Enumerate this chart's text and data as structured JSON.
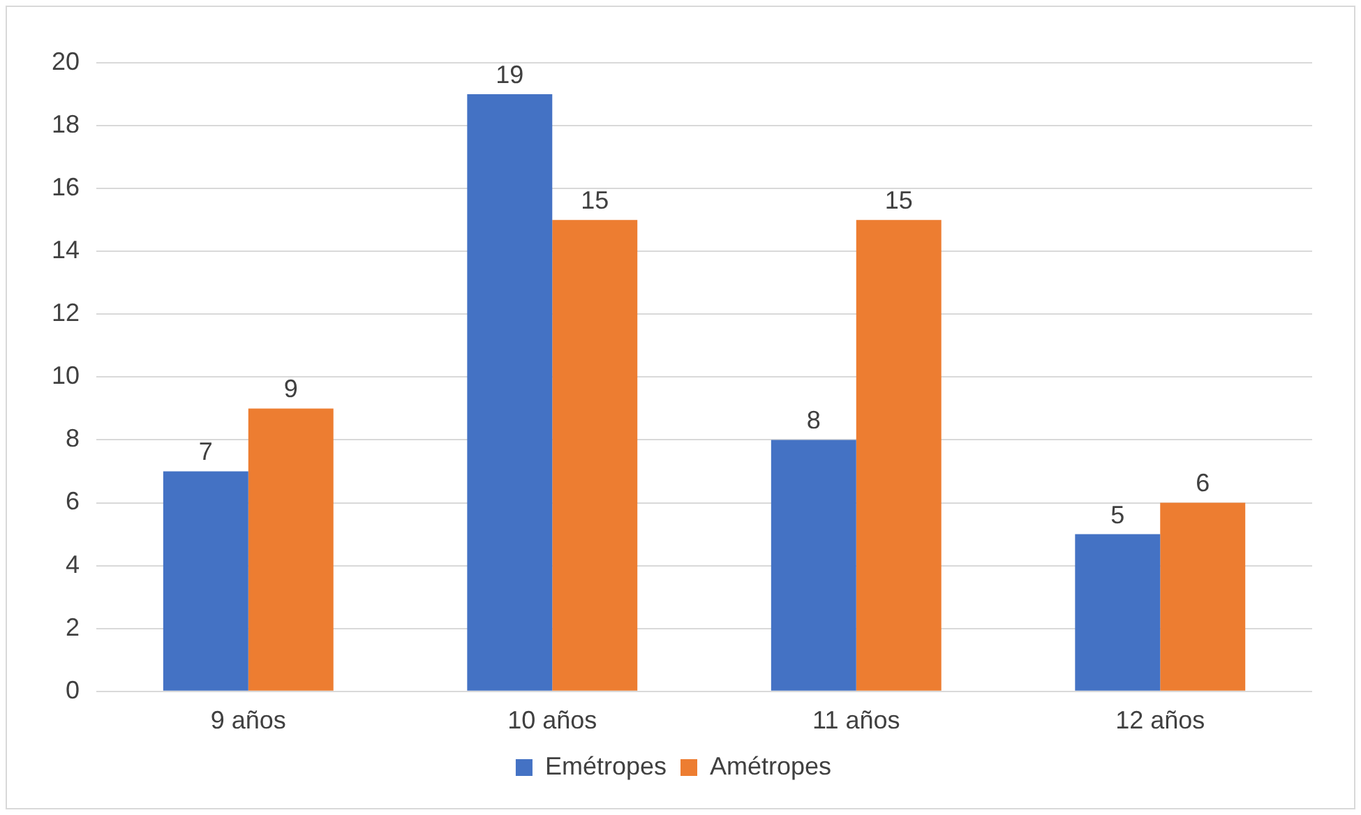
{
  "chart_data": {
    "type": "bar",
    "categories": [
      "9 años",
      "10 años",
      "11 años",
      "12 años"
    ],
    "series": [
      {
        "name": "Emétropes",
        "color": "#4472c4",
        "values": [
          7,
          19,
          8,
          5
        ]
      },
      {
        "name": "Amétropes",
        "color": "#ed7d31",
        "values": [
          9,
          15,
          15,
          6
        ]
      }
    ],
    "ylim": [
      0,
      20
    ],
    "yticks": [
      0,
      2,
      4,
      6,
      8,
      10,
      12,
      14,
      16,
      18,
      20
    ],
    "grid": "y",
    "legend": "bottom",
    "data_labels": true
  }
}
